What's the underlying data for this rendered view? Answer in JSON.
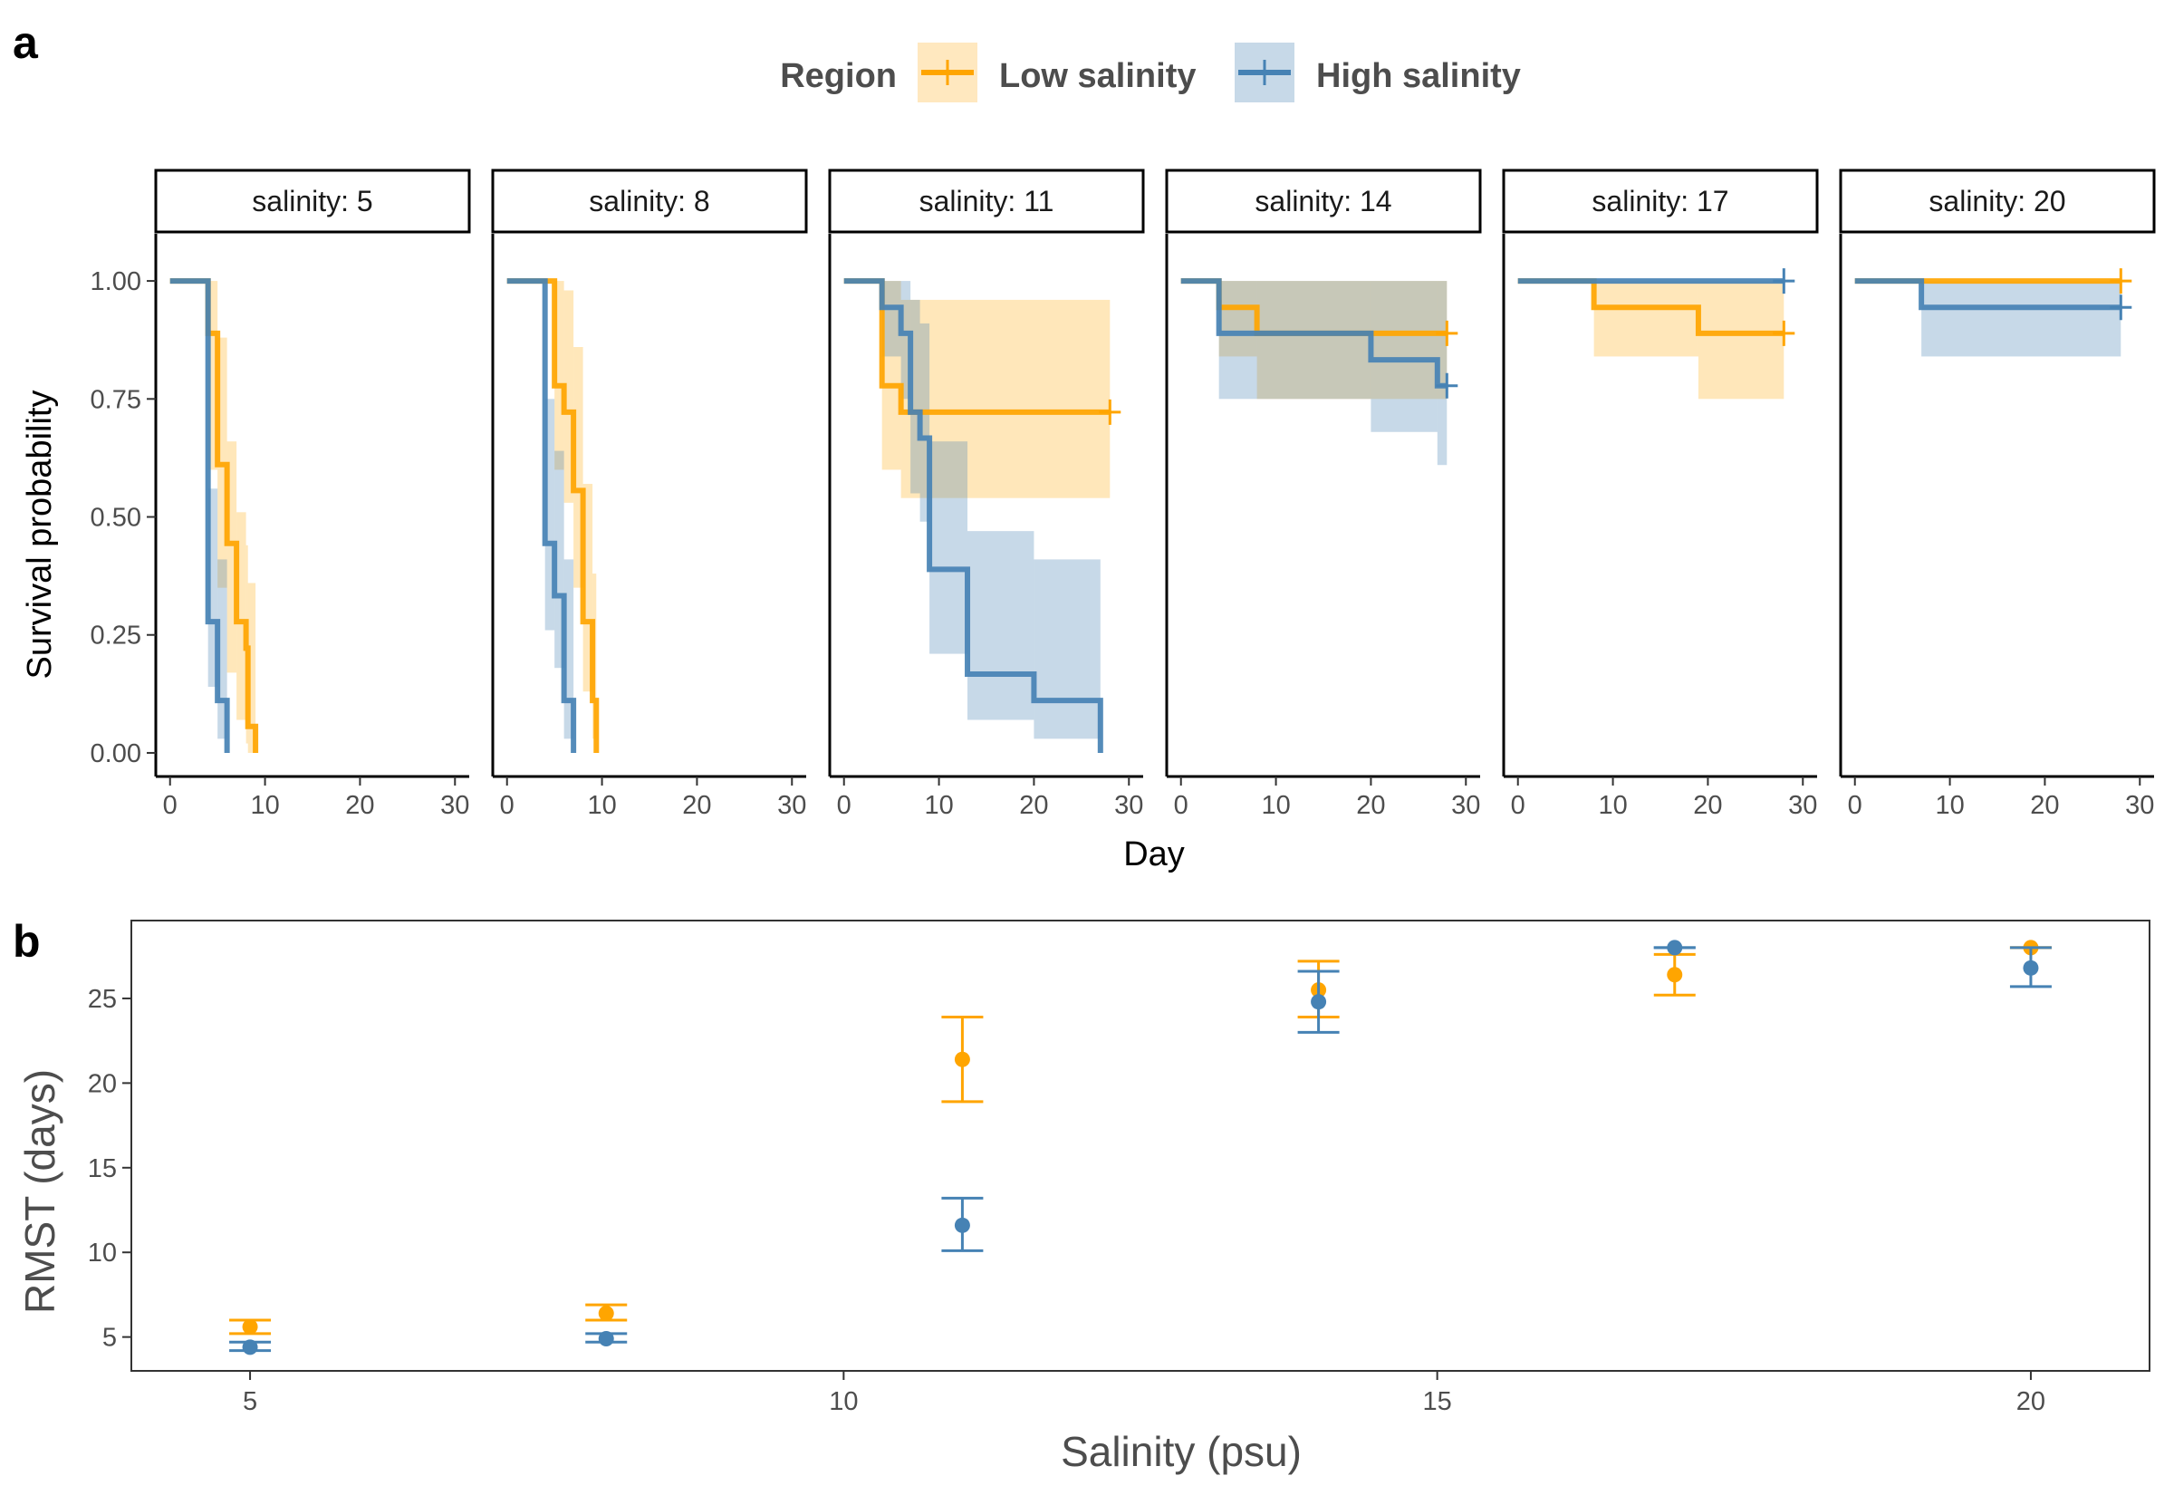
{
  "panels": {
    "a": "a",
    "b": "b"
  },
  "legend": {
    "title": "Region",
    "items": [
      {
        "label": "Low salinity",
        "color": "#FFA500"
      },
      {
        "label": "High salinity",
        "color": "#4682B4"
      }
    ]
  },
  "chart_data": [
    {
      "type": "line",
      "subtype": "kaplan-meier survival step curves with confidence bands, faceted",
      "ylabel": "Survival probability",
      "xlabel": "Day",
      "xlim": [
        -1.5,
        31.5
      ],
      "ylim": [
        -0.05,
        1.1
      ],
      "xticks": [
        0,
        10,
        20,
        30
      ],
      "yticks": [
        "0.00",
        "0.25",
        "0.50",
        "0.75",
        "1.00"
      ],
      "ytick_values": [
        0,
        0.25,
        0.5,
        0.75,
        1.0
      ],
      "facets": [
        {
          "strip": "salinity: 5",
          "series": [
            {
              "name": "Low salinity",
              "steps": [
                [
                  0,
                  1
                ],
                [
                  4,
                  0.889
                ],
                [
                  5,
                  0.611
                ],
                [
                  6,
                  0.444
                ],
                [
                  7,
                  0.278
                ],
                [
                  8,
                  0.222
                ],
                [
                  8.2,
                  0.056
                ],
                [
                  9,
                  0
                ]
              ],
              "band": [
                [
                  0,
                  1,
                  1
                ],
                [
                  4,
                  0.6,
                  1
                ],
                [
                  5,
                  0.35,
                  0.88
                ],
                [
                  6,
                  0.17,
                  0.66
                ],
                [
                  7,
                  0.07,
                  0.51
                ],
                [
                  8,
                  0.02,
                  0.44
                ],
                [
                  8.2,
                  0,
                  0.36
                ],
                [
                  9,
                  0,
                  0.2
                ]
              ],
              "censor": []
            },
            {
              "name": "High salinity",
              "steps": [
                [
                  0,
                  1
                ],
                [
                  4,
                  0.278
                ],
                [
                  5,
                  0.111
                ],
                [
                  6,
                  0
                ]
              ],
              "band": [
                [
                  0,
                  1,
                  1
                ],
                [
                  4,
                  0.14,
                  0.56
                ],
                [
                  5,
                  0.03,
                  0.41
                ],
                [
                  6,
                  0,
                  0.2
                ]
              ],
              "censor": []
            }
          ]
        },
        {
          "strip": "salinity: 8",
          "series": [
            {
              "name": "Low salinity",
              "steps": [
                [
                  0,
                  1
                ],
                [
                  4,
                  1
                ],
                [
                  5,
                  0.778
                ],
                [
                  6,
                  0.722
                ],
                [
                  7,
                  0.556
                ],
                [
                  8,
                  0.278
                ],
                [
                  9,
                  0.111
                ],
                [
                  9.4,
                  0
                ]
              ],
              "band": [
                [
                  0,
                  1,
                  1
                ],
                [
                  4,
                  1,
                  1
                ],
                [
                  5,
                  0.6,
                  1
                ],
                [
                  6,
                  0.53,
                  0.98
                ],
                [
                  7,
                  0.35,
                  0.86
                ],
                [
                  8,
                  0.13,
                  0.57
                ],
                [
                  9,
                  0.03,
                  0.38
                ],
                [
                  9.4,
                  0,
                  0.2
                ]
              ],
              "censor": []
            },
            {
              "name": "High salinity",
              "steps": [
                [
                  0,
                  1
                ],
                [
                  4,
                  0.444
                ],
                [
                  5,
                  0.333
                ],
                [
                  6,
                  0.111
                ],
                [
                  7,
                  0
                ]
              ],
              "band": [
                [
                  0,
                  1,
                  1
                ],
                [
                  4,
                  0.26,
                  0.75
                ],
                [
                  5,
                  0.18,
                  0.64
                ],
                [
                  6,
                  0.03,
                  0.41
                ],
                [
                  7,
                  0,
                  0.2
                ]
              ],
              "censor": []
            }
          ]
        },
        {
          "strip": "salinity: 11",
          "series": [
            {
              "name": "Low salinity",
              "steps": [
                [
                  0,
                  1
                ],
                [
                  4,
                  0.778
                ],
                [
                  6,
                  0.722
                ],
                [
                  28,
                  0.722
                ]
              ],
              "band": [
                [
                  0,
                  1,
                  1
                ],
                [
                  4,
                  0.6,
                  1
                ],
                [
                  6,
                  0.54,
                  0.96
                ],
                [
                  28,
                  0.54,
                  0.96
                ]
              ],
              "censor": [
                [
                  28,
                  0.722
                ]
              ]
            },
            {
              "name": "High salinity",
              "steps": [
                [
                  0,
                  1
                ],
                [
                  4,
                  0.944
                ],
                [
                  6,
                  0.889
                ],
                [
                  7,
                  0.722
                ],
                [
                  8,
                  0.667
                ],
                [
                  9,
                  0.389
                ],
                [
                  13,
                  0.167
                ],
                [
                  20,
                  0.111
                ],
                [
                  27,
                  0
                ]
              ],
              "band": [
                [
                  0,
                  1,
                  1
                ],
                [
                  4,
                  0.84,
                  1
                ],
                [
                  6,
                  0.75,
                  1
                ],
                [
                  7,
                  0.55,
                  0.96
                ],
                [
                  8,
                  0.49,
                  0.91
                ],
                [
                  9,
                  0.21,
                  0.66
                ],
                [
                  13,
                  0.07,
                  0.47
                ],
                [
                  20,
                  0.03,
                  0.41
                ],
                [
                  27,
                  0,
                  0.2
                ]
              ],
              "censor": []
            }
          ]
        },
        {
          "strip": "salinity: 14",
          "series": [
            {
              "name": "Low salinity",
              "steps": [
                [
                  0,
                  1
                ],
                [
                  4,
                  0.944
                ],
                [
                  8,
                  0.889
                ],
                [
                  28,
                  0.889
                ]
              ],
              "band": [
                [
                  0,
                  1,
                  1
                ],
                [
                  4,
                  0.84,
                  1
                ],
                [
                  8,
                  0.75,
                  1
                ],
                [
                  28,
                  0.75,
                  1
                ]
              ],
              "censor": [
                [
                  28,
                  0.889
                ]
              ]
            },
            {
              "name": "High salinity",
              "steps": [
                [
                  0,
                  1
                ],
                [
                  4,
                  0.889
                ],
                [
                  20,
                  0.833
                ],
                [
                  27,
                  0.778
                ],
                [
                  28,
                  0.778
                ]
              ],
              "band": [
                [
                  0,
                  1,
                  1
                ],
                [
                  4,
                  0.75,
                  1
                ],
                [
                  20,
                  0.68,
                  1
                ],
                [
                  27,
                  0.61,
                  1
                ],
                [
                  28,
                  0.61,
                  1
                ]
              ],
              "censor": [
                [
                  28,
                  0.778
                ]
              ]
            }
          ]
        },
        {
          "strip": "salinity: 17",
          "series": [
            {
              "name": "Low salinity",
              "steps": [
                [
                  0,
                  1
                ],
                [
                  8,
                  0.944
                ],
                [
                  19,
                  0.889
                ],
                [
                  28,
                  0.889
                ]
              ],
              "band": [
                [
                  0,
                  1,
                  1
                ],
                [
                  8,
                  0.84,
                  1
                ],
                [
                  19,
                  0.75,
                  1
                ],
                [
                  28,
                  0.75,
                  1
                ]
              ],
              "censor": [
                [
                  28,
                  0.889
                ]
              ]
            },
            {
              "name": "High salinity",
              "steps": [
                [
                  0,
                  1
                ],
                [
                  28,
                  1
                ]
              ],
              "band": [],
              "censor": [
                [
                  28,
                  1
                ]
              ]
            }
          ]
        },
        {
          "strip": "salinity: 20",
          "series": [
            {
              "name": "Low salinity",
              "steps": [
                [
                  0,
                  1
                ],
                [
                  28,
                  1
                ]
              ],
              "band": [],
              "censor": [
                [
                  28,
                  1
                ]
              ]
            },
            {
              "name": "High salinity",
              "steps": [
                [
                  0,
                  1
                ],
                [
                  7,
                  0.944
                ],
                [
                  28,
                  0.944
                ]
              ],
              "band": [
                [
                  0,
                  1,
                  1
                ],
                [
                  7,
                  0.84,
                  1
                ],
                [
                  28,
                  0.84,
                  1
                ]
              ],
              "censor": [
                [
                  28,
                  0.944
                ]
              ]
            }
          ]
        }
      ]
    },
    {
      "type": "scatter",
      "subtype": "point estimates with error bars",
      "xlabel": "Salinity (psu)",
      "ylabel": "RMST (days)",
      "xlim": [
        4,
        21
      ],
      "ylim": [
        3.0,
        29.6
      ],
      "xticks": [
        5,
        10,
        15,
        20
      ],
      "yticks": [
        5,
        10,
        15,
        20,
        25
      ],
      "series": [
        {
          "name": "Low salinity",
          "points": [
            {
              "x": 5,
              "y": 5.6,
              "lo": 5.2,
              "hi": 6.0
            },
            {
              "x": 8,
              "y": 6.4,
              "lo": 6.0,
              "hi": 6.9
            },
            {
              "x": 11,
              "y": 21.4,
              "lo": 18.9,
              "hi": 23.9
            },
            {
              "x": 14,
              "y": 25.5,
              "lo": 23.9,
              "hi": 27.2
            },
            {
              "x": 17,
              "y": 26.4,
              "lo": 25.2,
              "hi": 27.6
            },
            {
              "x": 20,
              "y": 28.0,
              "lo": 28.0,
              "hi": 28.0
            }
          ]
        },
        {
          "name": "High salinity",
          "points": [
            {
              "x": 5,
              "y": 4.4,
              "lo": 4.2,
              "hi": 4.7
            },
            {
              "x": 8,
              "y": 4.9,
              "lo": 4.7,
              "hi": 5.2
            },
            {
              "x": 11,
              "y": 11.6,
              "lo": 10.1,
              "hi": 13.2
            },
            {
              "x": 14,
              "y": 24.8,
              "lo": 23.0,
              "hi": 26.6
            },
            {
              "x": 17,
              "y": 28.0,
              "lo": 28.0,
              "hi": 28.0
            },
            {
              "x": 20,
              "y": 26.8,
              "lo": 25.7,
              "hi": 28.0
            }
          ]
        }
      ]
    }
  ]
}
